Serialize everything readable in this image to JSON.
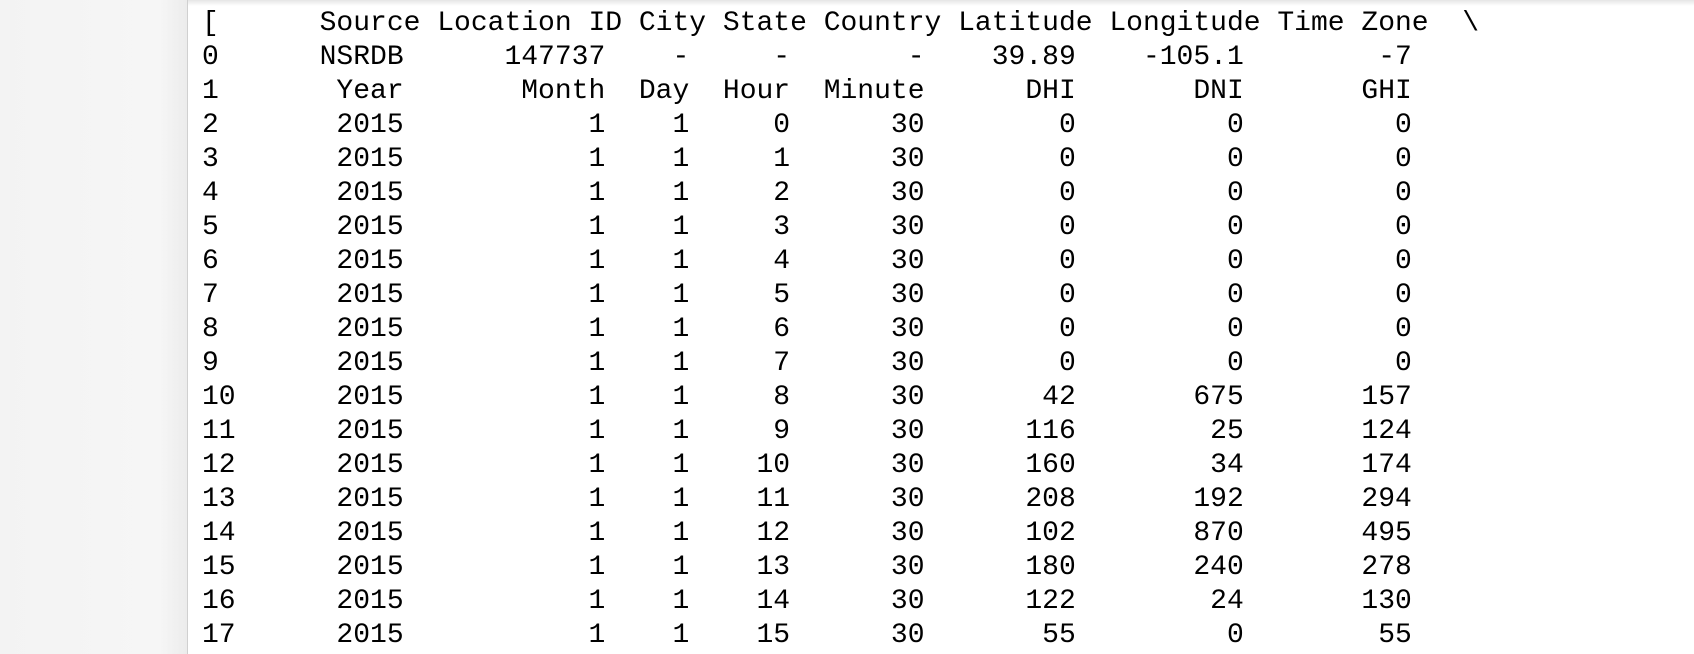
{
  "output": {
    "lines": [
      "[      Source Location ID City State Country Latitude Longitude Time Zone  \\",
      "0      NSRDB      147737    -     -       -    39.89    -105.1        -7",
      "1       Year       Month  Day  Hour  Minute      DHI       DNI       GHI",
      "2       2015           1    1     0      30        0         0         0",
      "3       2015           1    1     1      30        0         0         0",
      "4       2015           1    1     2      30        0         0         0",
      "5       2015           1    1     3      30        0         0         0",
      "6       2015           1    1     4      30        0         0         0",
      "7       2015           1    1     5      30        0         0         0",
      "8       2015           1    1     6      30        0         0         0",
      "9       2015           1    1     7      30        0         0         0",
      "10      2015           1    1     8      30       42       675       157",
      "11      2015           1    1     9      30      116        25       124",
      "12      2015           1    1    10      30      160        34       174",
      "13      2015           1    1    11      30      208       192       294",
      "14      2015           1    1    12      30      102       870       495",
      "15      2015           1    1    13      30      180       240       278",
      "16      2015           1    1    14      30      122        24       130",
      "17      2015           1    1    15      30       55         0        55"
    ]
  }
}
